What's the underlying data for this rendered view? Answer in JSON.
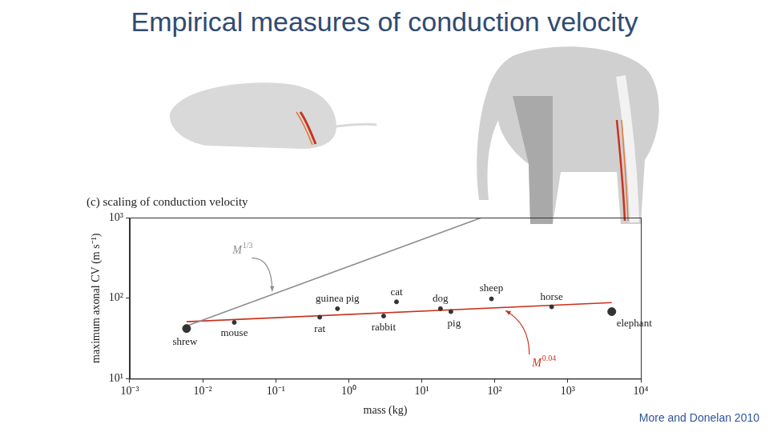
{
  "title": "Empirical measures of conduction velocity",
  "citation": "More and Donelan 2010",
  "chart_data": {
    "type": "scatter",
    "title": "(c) scaling of conduction velocity",
    "x_label": "mass (kg)",
    "y_label": "maximum axonal CV (m s⁻¹)",
    "log": true,
    "grid": false,
    "xlim": [
      0.001,
      10000
    ],
    "ylim": [
      10,
      1000
    ],
    "xticks": [
      {
        "value": 0.001,
        "label": "10⁻³"
      },
      {
        "value": 0.01,
        "label": "10⁻²"
      },
      {
        "value": 0.1,
        "label": "10⁻¹"
      },
      {
        "value": 1,
        "label": "10⁰"
      },
      {
        "value": 10,
        "label": "10¹"
      },
      {
        "value": 100,
        "label": "10²"
      },
      {
        "value": 1000,
        "label": "10³"
      },
      {
        "value": 10000,
        "label": "10⁴"
      }
    ],
    "yticks": [
      {
        "value": 10,
        "label": "10¹"
      },
      {
        "value": 100,
        "label": "10²"
      },
      {
        "value": 1000,
        "label": "10³"
      }
    ],
    "series": [
      {
        "type": "scatter",
        "color": "#333333",
        "marker": "circle",
        "x": [
          0.006,
          0.027,
          0.4,
          0.7,
          3,
          4.5,
          18,
          25,
          90,
          600,
          4000
        ],
        "values": [
          42,
          50,
          58,
          74,
          60,
          90,
          74,
          68,
          98,
          78,
          68
        ],
        "point_labels": [
          "shrew",
          "mouse",
          "rat",
          "guinea pig",
          "rabbit",
          "cat",
          "dog",
          "pig",
          "sheep",
          "horse",
          "elephant"
        ]
      },
      {
        "type": "line",
        "color": "#8c8c8c",
        "x": [
          0.006,
          66
        ],
        "values": [
          45,
          1000
        ],
        "annotation": {
          "text": "M",
          "superscript": "1/3"
        }
      },
      {
        "type": "line",
        "color": "#c8321e",
        "x": [
          0.006,
          4000
        ],
        "values": [
          51,
          88
        ],
        "annotation": {
          "text": "M",
          "superscript": "0.04"
        }
      }
    ]
  }
}
